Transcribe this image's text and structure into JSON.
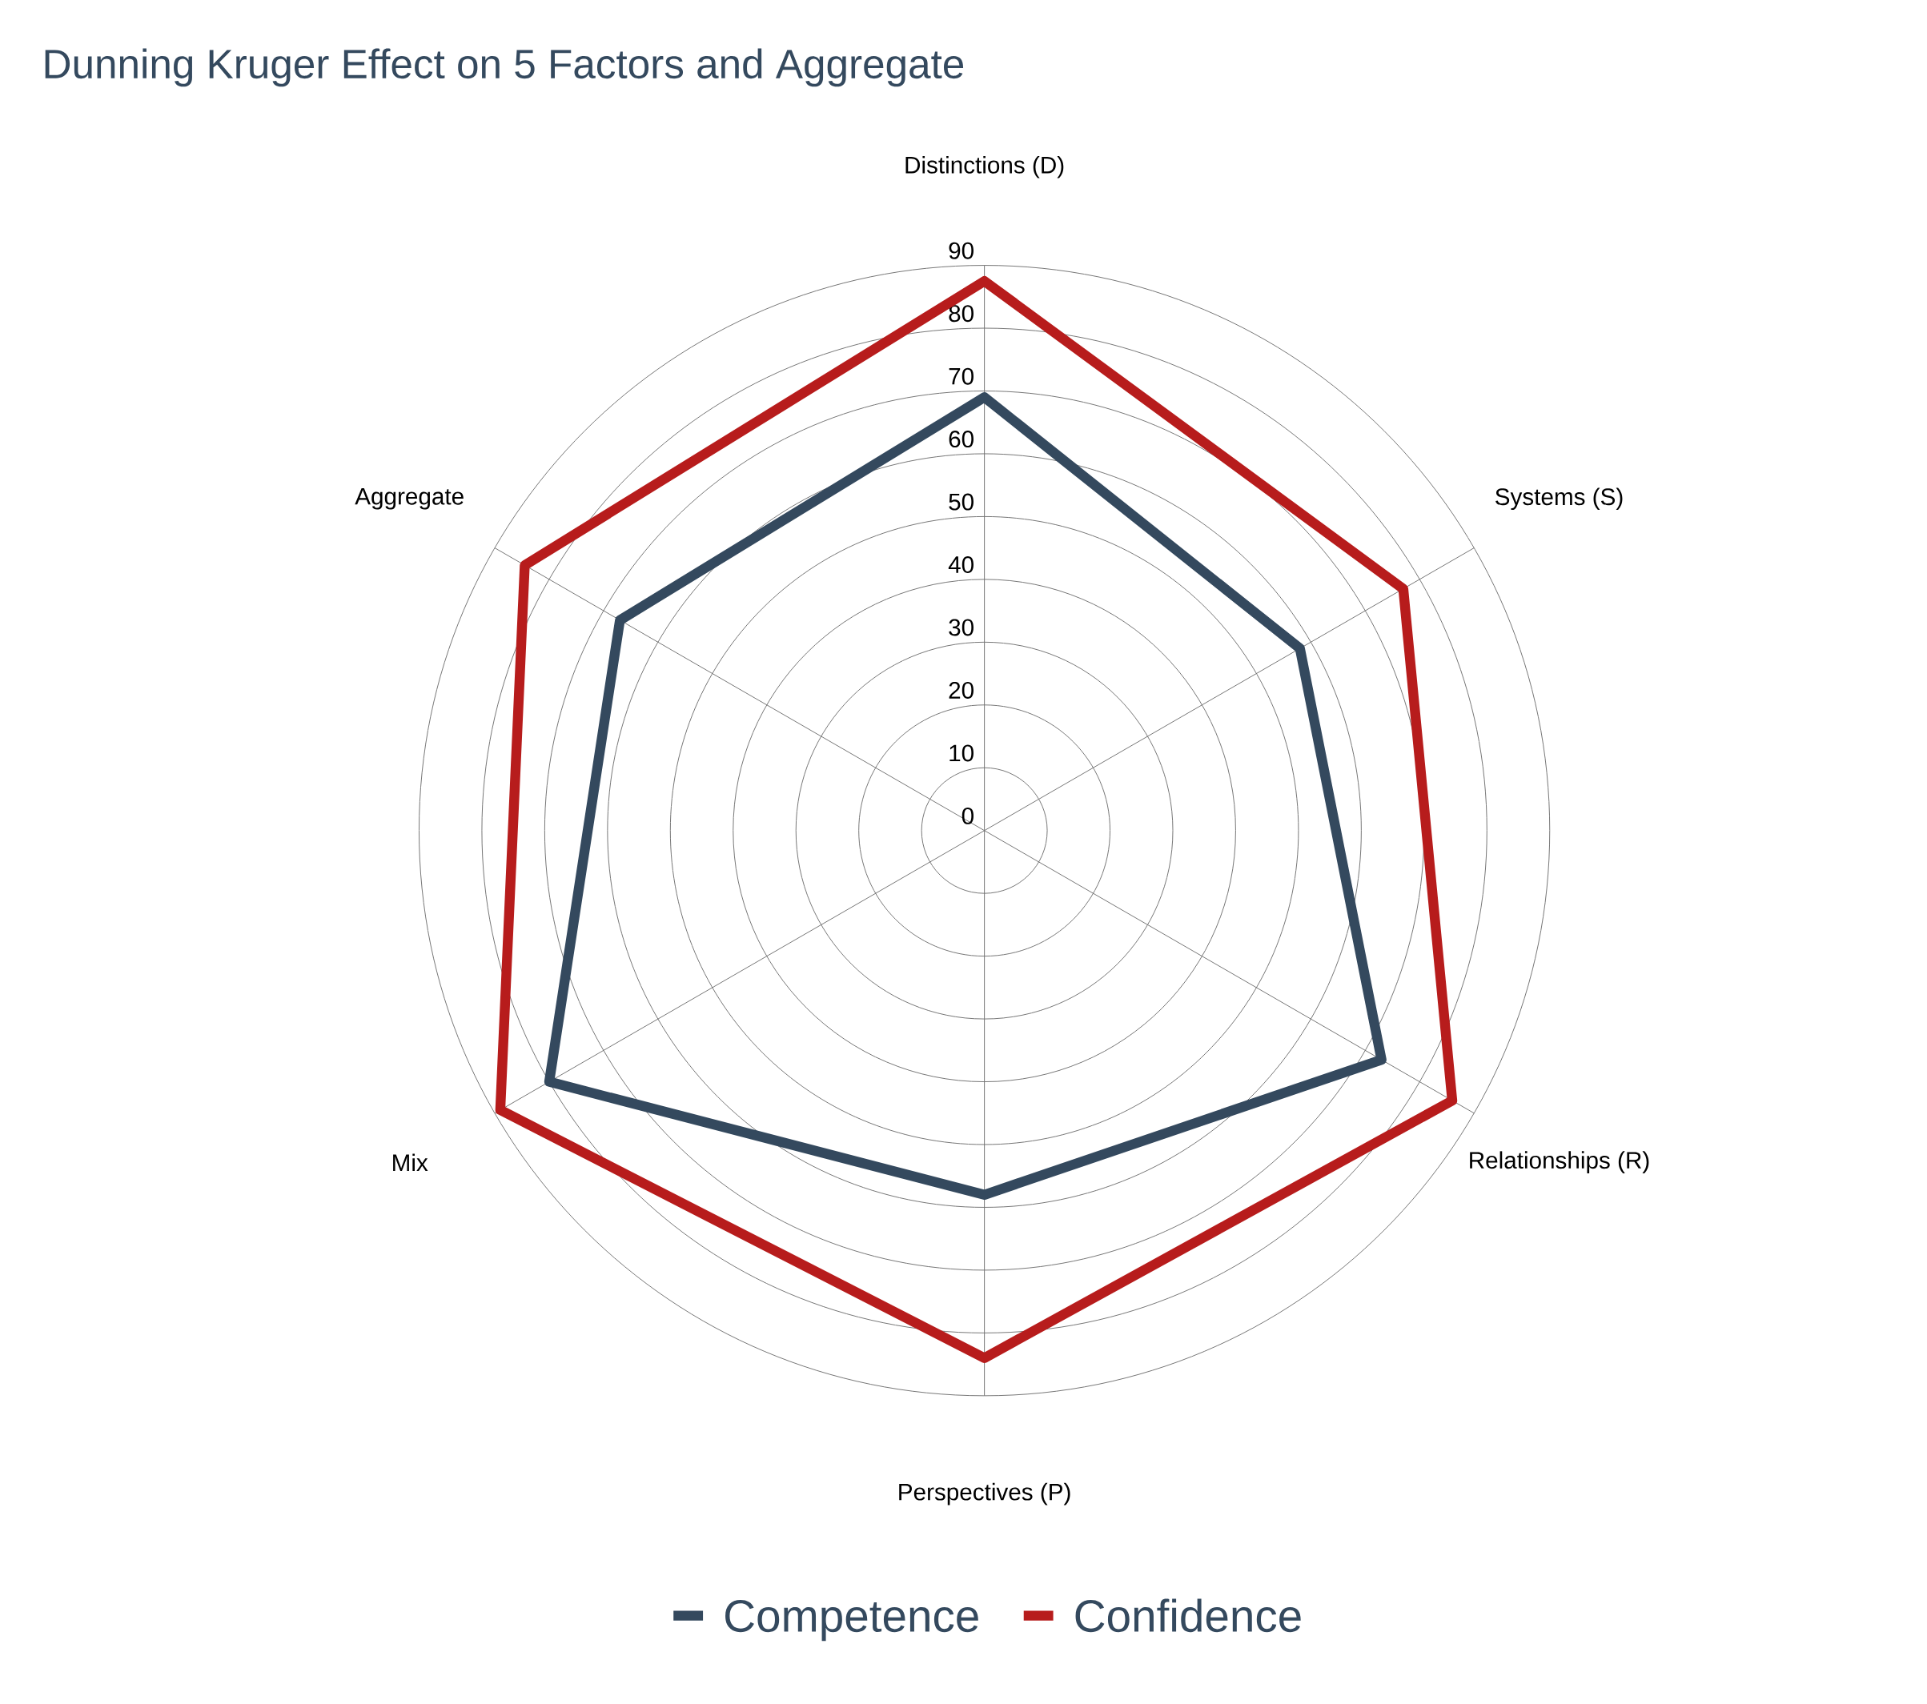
{
  "chart_data": {
    "type": "radar",
    "title": "Dunning Kruger Effect on 5 Factors and Aggregate",
    "categories": [
      "Distinctions (D)",
      "Systems (S)",
      "Relationships (R)",
      "Perspectives (P)",
      "Mix",
      "Aggregate"
    ],
    "series": [
      {
        "name": "Competence",
        "color": "#34495e",
        "values": [
          69,
          58,
          73,
          58,
          80,
          67
        ]
      },
      {
        "name": "Confidence",
        "color": "#b71c1c",
        "values": [
          87.5,
          77,
          86,
          84,
          89,
          84.5
        ]
      }
    ],
    "ylim": [
      0,
      90
    ],
    "yticks": [
      0,
      10,
      20,
      30,
      40,
      50,
      60,
      70,
      80,
      90
    ],
    "legend": "bottom",
    "marker": "none",
    "line_style": "solid"
  }
}
